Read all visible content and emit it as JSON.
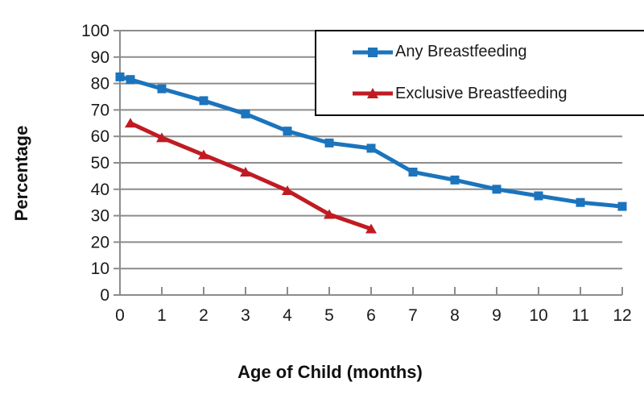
{
  "chart_data": {
    "type": "line",
    "title": "",
    "xlabel": "Age of Child (months)",
    "ylabel": "Percentage",
    "xlim": [
      0,
      12
    ],
    "ylim": [
      0,
      100
    ],
    "x_ticks": [
      "0",
      "1",
      "2",
      "3",
      "4",
      "5",
      "6",
      "7",
      "8",
      "9",
      "10",
      "11",
      "12"
    ],
    "y_ticks": [
      "0",
      "10",
      "20",
      "30",
      "40",
      "50",
      "60",
      "70",
      "80",
      "90",
      "100"
    ],
    "grid": "horizontal",
    "grid_color": "#8C8C8C",
    "axis_color": "#8C8C8C",
    "tick_label_color": "#1A1A1A",
    "legend_position": "top-right",
    "legend_border_color": "#000000",
    "legend_background": "#FFFFFF",
    "series": [
      {
        "name": "Any Breastfeeding",
        "color": "#1B74BC",
        "marker": "square",
        "x": [
          0,
          0.25,
          1,
          2,
          3,
          4,
          5,
          6,
          7,
          8,
          9,
          10,
          11,
          12
        ],
        "y": [
          82.5,
          81.5,
          78,
          73.5,
          68.5,
          62,
          57.5,
          55.5,
          46.5,
          43.5,
          40,
          37.5,
          35,
          33.5
        ]
      },
      {
        "name": "Exclusive Breastfeeding",
        "color": "#C01B23",
        "marker": "triangle",
        "x": [
          0.25,
          1,
          2,
          3,
          4,
          5,
          6
        ],
        "y": [
          65,
          59.5,
          53,
          46.5,
          39.5,
          30.5,
          25
        ]
      }
    ]
  }
}
